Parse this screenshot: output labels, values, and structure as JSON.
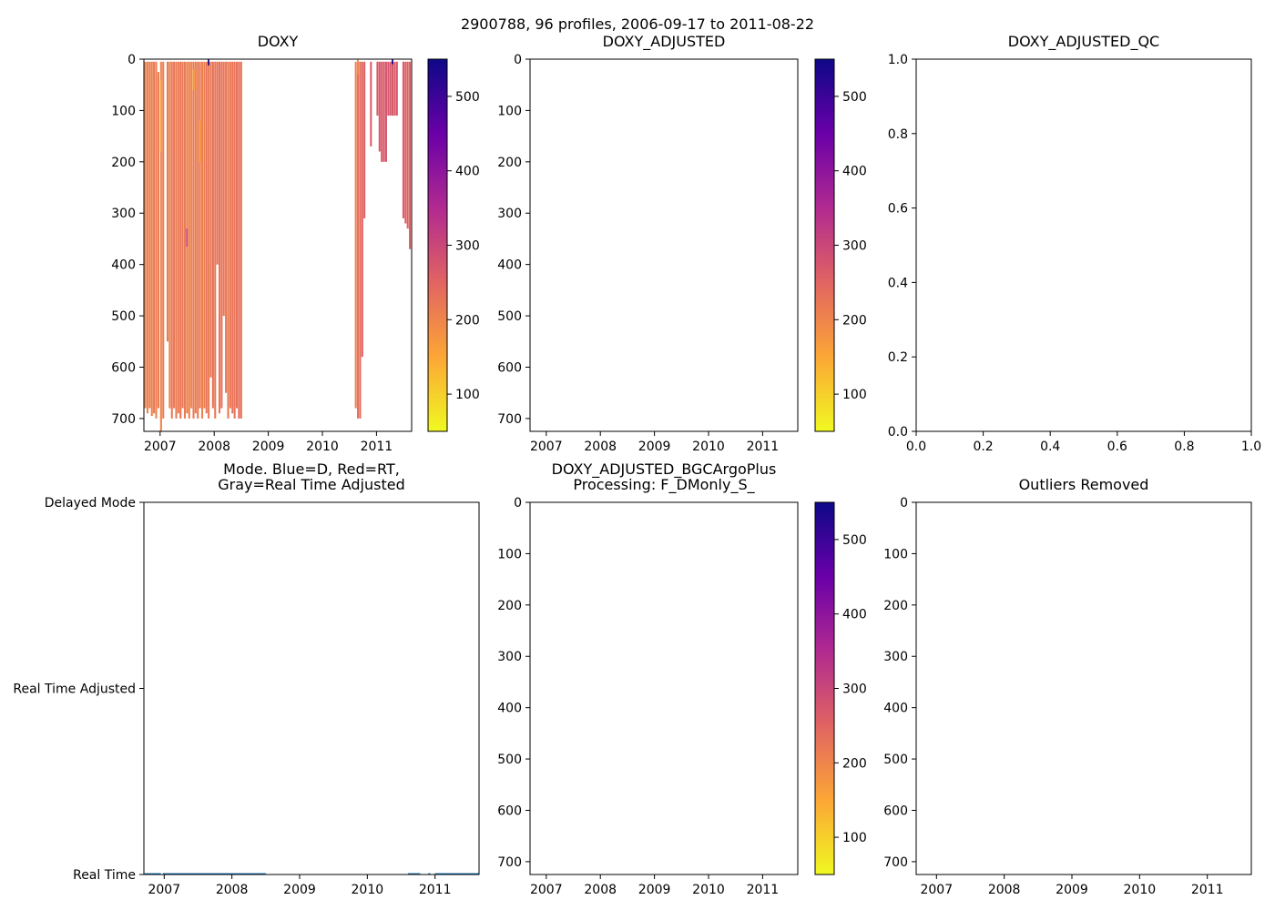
{
  "figure": {
    "suptitle": "2900788, 96 profiles, 2006-09-17 to 2011-08-22"
  },
  "colormap": {
    "name": "plasma_r",
    "stops": [
      "#f0f921",
      "#fca636",
      "#e16462",
      "#b12a90",
      "#6a00a8",
      "#0d0887"
    ]
  },
  "chart_data": [
    {
      "id": "doxy",
      "type": "heatmap",
      "title": "DOXY",
      "xlabel": "",
      "ylabel": "",
      "xlim": [
        2006.7,
        2011.65
      ],
      "ylim": [
        725,
        0
      ],
      "xticks": [
        2007,
        2008,
        2009,
        2010,
        2011
      ],
      "xtick_labels": [
        "2007",
        "2008",
        "2009",
        "2010",
        "2011"
      ],
      "yticks": [
        0,
        100,
        200,
        300,
        400,
        500,
        600,
        700
      ],
      "ytick_labels": [
        "0",
        "100",
        "200",
        "300",
        "400",
        "500",
        "600",
        "700"
      ],
      "colorbar": {
        "vmin": 50,
        "vmax": 550,
        "ticks": [
          100,
          200,
          300,
          400,
          500
        ],
        "tick_labels": [
          "100",
          "200",
          "300",
          "400",
          "500"
        ]
      },
      "profiles": [
        {
          "t": 2006.71,
          "w": 0.035,
          "top": 5,
          "bottom": 680,
          "value": 205
        },
        {
          "t": 2006.75,
          "w": 0.035,
          "top": 5,
          "bottom": 690,
          "value": 200
        },
        {
          "t": 2006.79,
          "w": 0.035,
          "top": 5,
          "bottom": 680,
          "value": 215
        },
        {
          "t": 2006.83,
          "w": 0.035,
          "top": 5,
          "bottom": 695,
          "value": 210
        },
        {
          "t": 2006.87,
          "w": 0.035,
          "top": 5,
          "bottom": 690,
          "value": 220
        },
        {
          "t": 2006.91,
          "w": 0.035,
          "top": 5,
          "bottom": 700,
          "value": 205
        },
        {
          "t": 2006.95,
          "w": 0.035,
          "top": 25,
          "bottom": 680,
          "value": 215
        },
        {
          "t": 2007.0,
          "w": 0.035,
          "top": 5,
          "bottom": 725,
          "value": 200
        },
        {
          "t": 2007.04,
          "w": 0.035,
          "top": 5,
          "bottom": 700,
          "value": 210
        },
        {
          "t": 2007.12,
          "w": 0.035,
          "top": 5,
          "bottom": 550,
          "value": 215
        },
        {
          "t": 2007.16,
          "w": 0.035,
          "top": 5,
          "bottom": 680,
          "value": 205
        },
        {
          "t": 2007.2,
          "w": 0.035,
          "top": 5,
          "bottom": 700,
          "value": 220
        },
        {
          "t": 2007.24,
          "w": 0.035,
          "top": 5,
          "bottom": 680,
          "value": 225
        },
        {
          "t": 2007.28,
          "w": 0.035,
          "top": 5,
          "bottom": 700,
          "value": 215
        },
        {
          "t": 2007.32,
          "w": 0.035,
          "top": 5,
          "bottom": 690,
          "value": 210
        },
        {
          "t": 2007.36,
          "w": 0.035,
          "top": 5,
          "bottom": 700,
          "value": 230
        },
        {
          "t": 2007.4,
          "w": 0.035,
          "top": 5,
          "bottom": 680,
          "value": 220
        },
        {
          "t": 2007.44,
          "w": 0.035,
          "top": 5,
          "bottom": 700,
          "value": 215
        },
        {
          "t": 2007.48,
          "w": 0.035,
          "top": 5,
          "bottom": 690,
          "value": 205
        },
        {
          "t": 2007.52,
          "w": 0.035,
          "top": 5,
          "bottom": 700,
          "value": 210
        },
        {
          "t": 2007.56,
          "w": 0.035,
          "top": 5,
          "bottom": 680,
          "value": 200
        },
        {
          "t": 2007.6,
          "w": 0.035,
          "top": 5,
          "bottom": 700,
          "value": 215
        },
        {
          "t": 2007.64,
          "w": 0.035,
          "top": 5,
          "bottom": 690,
          "value": 210
        },
        {
          "t": 2007.68,
          "w": 0.035,
          "top": 5,
          "bottom": 700,
          "value": 220
        },
        {
          "t": 2007.72,
          "w": 0.035,
          "top": 5,
          "bottom": 680,
          "value": 215
        },
        {
          "t": 2007.76,
          "w": 0.035,
          "top": 5,
          "bottom": 700,
          "value": 205
        },
        {
          "t": 2007.8,
          "w": 0.035,
          "top": 5,
          "bottom": 680,
          "value": 210
        },
        {
          "t": 2007.84,
          "w": 0.035,
          "top": 5,
          "bottom": 690,
          "value": 225
        },
        {
          "t": 2007.88,
          "w": 0.035,
          "top": 5,
          "bottom": 700,
          "value": 215
        },
        {
          "t": 2007.92,
          "w": 0.035,
          "top": 5,
          "bottom": 620,
          "value": 220
        },
        {
          "t": 2007.96,
          "w": 0.035,
          "top": 5,
          "bottom": 680,
          "value": 230
        },
        {
          "t": 2008.0,
          "w": 0.035,
          "top": 5,
          "bottom": 700,
          "value": 220
        },
        {
          "t": 2008.04,
          "w": 0.035,
          "top": 5,
          "bottom": 400,
          "value": 235
        },
        {
          "t": 2008.08,
          "w": 0.035,
          "top": 5,
          "bottom": 690,
          "value": 225
        },
        {
          "t": 2008.12,
          "w": 0.035,
          "top": 5,
          "bottom": 680,
          "value": 230
        },
        {
          "t": 2008.16,
          "w": 0.035,
          "top": 5,
          "bottom": 500,
          "value": 220
        },
        {
          "t": 2008.2,
          "w": 0.035,
          "top": 5,
          "bottom": 650,
          "value": 225
        },
        {
          "t": 2008.24,
          "w": 0.035,
          "top": 5,
          "bottom": 700,
          "value": 215
        },
        {
          "t": 2008.28,
          "w": 0.035,
          "top": 5,
          "bottom": 680,
          "value": 220
        },
        {
          "t": 2008.32,
          "w": 0.035,
          "top": 5,
          "bottom": 690,
          "value": 230
        },
        {
          "t": 2008.36,
          "w": 0.035,
          "top": 5,
          "bottom": 700,
          "value": 225
        },
        {
          "t": 2008.4,
          "w": 0.035,
          "top": 5,
          "bottom": 680,
          "value": 230
        },
        {
          "t": 2008.44,
          "w": 0.035,
          "top": 5,
          "bottom": 700,
          "value": 235
        },
        {
          "t": 2008.48,
          "w": 0.035,
          "top": 5,
          "bottom": 700,
          "value": 230
        },
        {
          "t": 2010.6,
          "w": 0.035,
          "top": 5,
          "bottom": 680,
          "value": 210
        },
        {
          "t": 2010.64,
          "w": 0.035,
          "top": 5,
          "bottom": 700,
          "value": 230
        },
        {
          "t": 2010.68,
          "w": 0.035,
          "top": 5,
          "bottom": 700,
          "value": 240
        },
        {
          "t": 2010.72,
          "w": 0.035,
          "top": 5,
          "bottom": 580,
          "value": 250
        },
        {
          "t": 2010.76,
          "w": 0.035,
          "top": 5,
          "bottom": 310,
          "value": 255
        },
        {
          "t": 2010.88,
          "w": 0.035,
          "top": 5,
          "bottom": 170,
          "value": 260
        },
        {
          "t": 2011.0,
          "w": 0.035,
          "top": 5,
          "bottom": 110,
          "value": 265
        },
        {
          "t": 2011.04,
          "w": 0.035,
          "top": 5,
          "bottom": 180,
          "value": 270
        },
        {
          "t": 2011.08,
          "w": 0.035,
          "top": 5,
          "bottom": 200,
          "value": 265
        },
        {
          "t": 2011.12,
          "w": 0.035,
          "top": 5,
          "bottom": 200,
          "value": 270
        },
        {
          "t": 2011.16,
          "w": 0.035,
          "top": 5,
          "bottom": 200,
          "value": 275
        },
        {
          "t": 2011.2,
          "w": 0.035,
          "top": 5,
          "bottom": 110,
          "value": 270
        },
        {
          "t": 2011.24,
          "w": 0.035,
          "top": 5,
          "bottom": 110,
          "value": 275
        },
        {
          "t": 2011.28,
          "w": 0.035,
          "top": 5,
          "bottom": 110,
          "value": 270
        },
        {
          "t": 2011.32,
          "w": 0.035,
          "top": 5,
          "bottom": 110,
          "value": 265
        },
        {
          "t": 2011.36,
          "w": 0.035,
          "top": 5,
          "bottom": 110,
          "value": 270
        },
        {
          "t": 2011.48,
          "w": 0.035,
          "top": 5,
          "bottom": 310,
          "value": 265
        },
        {
          "t": 2011.52,
          "w": 0.035,
          "top": 5,
          "bottom": 320,
          "value": 260
        },
        {
          "t": 2011.56,
          "w": 0.035,
          "top": 5,
          "bottom": 330,
          "value": 255
        },
        {
          "t": 2011.6,
          "w": 0.035,
          "top": 5,
          "bottom": 370,
          "value": 255
        }
      ],
      "patches": [
        {
          "t": 2007.0,
          "w": 0.03,
          "top": 40,
          "bottom": 180,
          "value": 160
        },
        {
          "t": 2007.48,
          "w": 0.03,
          "top": 330,
          "bottom": 365,
          "value": 300
        },
        {
          "t": 2007.6,
          "w": 0.05,
          "top": 20,
          "bottom": 60,
          "value": 170
        },
        {
          "t": 2007.72,
          "w": 0.04,
          "top": 120,
          "bottom": 200,
          "value": 175
        },
        {
          "t": 2007.88,
          "w": 0.03,
          "top": 0,
          "bottom": 12,
          "value": 545
        },
        {
          "t": 2010.64,
          "w": 0.03,
          "top": 0,
          "bottom": 30,
          "value": 190
        },
        {
          "t": 2011.28,
          "w": 0.03,
          "top": 0,
          "bottom": 10,
          "value": 545
        }
      ]
    },
    {
      "id": "doxy_adjusted",
      "type": "heatmap",
      "title": "DOXY_ADJUSTED",
      "xlim": [
        2006.7,
        2011.65
      ],
      "ylim": [
        725,
        0
      ],
      "xticks": [
        2007,
        2008,
        2009,
        2010,
        2011
      ],
      "xtick_labels": [
        "2007",
        "2008",
        "2009",
        "2010",
        "2011"
      ],
      "yticks": [
        0,
        100,
        200,
        300,
        400,
        500,
        600,
        700
      ],
      "ytick_labels": [
        "0",
        "100",
        "200",
        "300",
        "400",
        "500",
        "600",
        "700"
      ],
      "colorbar": {
        "vmin": 50,
        "vmax": 550,
        "ticks": [
          100,
          200,
          300,
          400,
          500
        ],
        "tick_labels": [
          "100",
          "200",
          "300",
          "400",
          "500"
        ]
      },
      "profiles": []
    },
    {
      "id": "doxy_adjusted_qc",
      "type": "scatter",
      "title": "DOXY_ADJUSTED_QC",
      "xlim": [
        0.0,
        1.0
      ],
      "ylim": [
        0.0,
        1.0
      ],
      "xticks": [
        0.0,
        0.2,
        0.4,
        0.6,
        0.8,
        1.0
      ],
      "xtick_labels": [
        "0.0",
        "0.2",
        "0.4",
        "0.6",
        "0.8",
        "1.0"
      ],
      "yticks": [
        0.0,
        0.2,
        0.4,
        0.6,
        0.8,
        1.0
      ],
      "ytick_labels": [
        "0.0",
        "0.2",
        "0.4",
        "0.6",
        "0.8",
        "1.0"
      ],
      "points": []
    },
    {
      "id": "mode",
      "type": "line",
      "title_lines": [
        "Mode. Blue=D, Red=RT,",
        "Gray=Real Time Adjusted"
      ],
      "xlim": [
        2006.7,
        2011.65
      ],
      "ylim": [
        0,
        2
      ],
      "xticks": [
        2007,
        2008,
        2009,
        2010,
        2011
      ],
      "xtick_labels": [
        "2007",
        "2008",
        "2009",
        "2010",
        "2011"
      ],
      "yticks": [
        0,
        1,
        2
      ],
      "ytick_labels": [
        "Real Time",
        "Real Time Adjusted",
        "Delayed Mode"
      ],
      "series": [
        {
          "name": "Real Time",
          "color": "#1f77b4",
          "y": 0,
          "segments": [
            [
              2006.71,
              2006.95
            ],
            [
              2006.98,
              2008.5
            ],
            [
              2010.6,
              2010.78
            ],
            [
              2010.9,
              2010.93
            ],
            [
              2011.0,
              2011.65
            ]
          ]
        }
      ]
    },
    {
      "id": "doxy_adjusted_bgc",
      "type": "heatmap",
      "title_lines": [
        "DOXY_ADJUSTED_BGCArgoPlus",
        "Processing: F_DMonly_S_"
      ],
      "xlim": [
        2006.7,
        2011.65
      ],
      "ylim": [
        725,
        0
      ],
      "xticks": [
        2007,
        2008,
        2009,
        2010,
        2011
      ],
      "xtick_labels": [
        "2007",
        "2008",
        "2009",
        "2010",
        "2011"
      ],
      "yticks": [
        0,
        100,
        200,
        300,
        400,
        500,
        600,
        700
      ],
      "ytick_labels": [
        "0",
        "100",
        "200",
        "300",
        "400",
        "500",
        "600",
        "700"
      ],
      "colorbar": {
        "vmin": 50,
        "vmax": 550,
        "ticks": [
          100,
          200,
          300,
          400,
          500
        ],
        "tick_labels": [
          "100",
          "200",
          "300",
          "400",
          "500"
        ]
      },
      "profiles": []
    },
    {
      "id": "outliers_removed",
      "type": "scatter",
      "title": "Outliers Removed",
      "xlim": [
        2006.7,
        2011.65
      ],
      "ylim": [
        725,
        0
      ],
      "xticks": [
        2007,
        2008,
        2009,
        2010,
        2011
      ],
      "xtick_labels": [
        "2007",
        "2008",
        "2009",
        "2010",
        "2011"
      ],
      "yticks": [
        0,
        100,
        200,
        300,
        400,
        500,
        600,
        700
      ],
      "ytick_labels": [
        "0",
        "100",
        "200",
        "300",
        "400",
        "500",
        "600",
        "700"
      ],
      "points": []
    }
  ]
}
